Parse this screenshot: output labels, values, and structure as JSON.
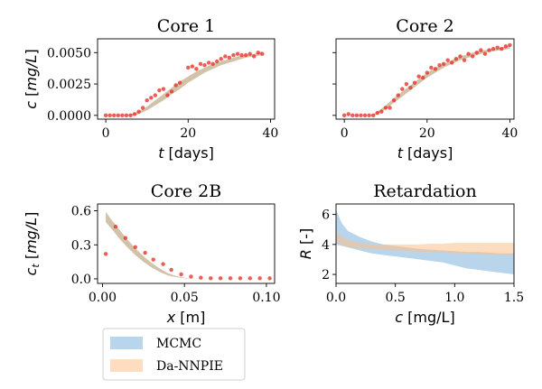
{
  "colors": {
    "mcmc": "#7fb2dc",
    "danppie": "#fdbf8a",
    "points": "#e8332a"
  },
  "legend": {
    "placement": "below-left",
    "items": [
      {
        "key": "mcmc",
        "label": "MCMC"
      },
      {
        "key": "danppie",
        "label": "Da-NNPIE"
      }
    ]
  },
  "chart_data": [
    {
      "id": "core1",
      "type": "scatter",
      "title": "Core 1",
      "xlabel_var": "t",
      "xlabel_unit": "[days]",
      "ylabel_var": "c",
      "ylabel_unit": "[mg/L]",
      "xlim": [
        -2,
        41
      ],
      "ylim": [
        -0.0003,
        0.0061
      ],
      "xticks": [
        0,
        20,
        40
      ],
      "xtick_labels": [
        "0",
        "20",
        "40"
      ],
      "yticks": [
        0,
        0.0025,
        0.005
      ],
      "ytick_labels": [
        "0.0000",
        "0.0025",
        "0.0050"
      ],
      "band": {
        "series": "both",
        "x": [
          0,
          5,
          6,
          8,
          10,
          12,
          14,
          16,
          18,
          20,
          22,
          24,
          26,
          28,
          30,
          32,
          34,
          36,
          38
        ],
        "lower": [
          0,
          0,
          0,
          0.0001,
          0.0004,
          0.0008,
          0.0012,
          0.0017,
          0.0021,
          0.0026,
          0.003,
          0.0034,
          0.0037,
          0.004,
          0.0042,
          0.0044,
          0.0046,
          0.0047,
          0.0048
        ],
        "upper": [
          0,
          0,
          0.0001,
          0.0003,
          0.0007,
          0.0012,
          0.0017,
          0.0022,
          0.0027,
          0.0031,
          0.0035,
          0.0038,
          0.0041,
          0.0043,
          0.0045,
          0.0047,
          0.0048,
          0.0049,
          0.0051
        ]
      },
      "points": {
        "x": [
          0,
          1,
          2,
          3,
          4,
          5,
          6,
          7,
          8,
          9,
          10,
          11,
          12,
          13,
          14,
          15,
          16,
          17,
          18,
          20,
          21,
          22,
          23,
          24,
          25,
          26,
          27,
          28,
          29,
          30,
          31,
          32,
          33,
          34,
          35,
          36,
          37,
          38
        ],
        "y": [
          0,
          0,
          0,
          0,
          0,
          0,
          0,
          0.0001,
          0.0003,
          0.0006,
          0.0012,
          0.0014,
          0.0016,
          0.002,
          0.0021,
          0.0016,
          0.0019,
          0.0024,
          0.0026,
          0.0038,
          0.0039,
          0.0037,
          0.0041,
          0.004,
          0.0042,
          0.0041,
          0.0043,
          0.0045,
          0.0047,
          0.0046,
          0.0048,
          0.0049,
          0.0048,
          0.0048,
          0.0049,
          0.0047,
          0.005,
          0.0049
        ]
      }
    },
    {
      "id": "core2",
      "type": "scatter",
      "title": "Core 2",
      "xlabel_var": "t",
      "xlabel_unit": "[days]",
      "xlim": [
        -2,
        41
      ],
      "ylim": [
        -0.0003,
        0.0061
      ],
      "xticks": [
        0,
        20,
        40
      ],
      "xtick_labels": [
        "0",
        "20",
        "40"
      ],
      "yticks": [
        0,
        0.0025,
        0.005
      ],
      "ytick_labels": [],
      "band": {
        "series": "both",
        "x": [
          0,
          6,
          7,
          8,
          10,
          12,
          14,
          16,
          18,
          20,
          22,
          24,
          26,
          28,
          30,
          32,
          34,
          36,
          38,
          40
        ],
        "lower": [
          0,
          0,
          0,
          0.0001,
          0.0005,
          0.001,
          0.0015,
          0.002,
          0.0025,
          0.003,
          0.0034,
          0.0038,
          0.0041,
          0.0044,
          0.0046,
          0.0048,
          0.005,
          0.0051,
          0.0052,
          0.0053
        ],
        "upper": [
          0,
          0,
          0.0001,
          0.0003,
          0.0008,
          0.0014,
          0.0019,
          0.0024,
          0.0029,
          0.0034,
          0.0038,
          0.0041,
          0.0044,
          0.0047,
          0.0049,
          0.0051,
          0.0052,
          0.0053,
          0.0054,
          0.0056
        ]
      },
      "points": {
        "x": [
          0,
          1,
          2,
          3,
          4,
          5,
          6,
          7,
          8,
          9,
          10,
          11,
          12,
          13,
          14,
          15,
          16,
          17,
          18,
          19,
          20,
          21,
          22,
          23,
          24,
          25,
          26,
          27,
          28,
          29,
          30,
          31,
          32,
          33,
          34,
          35,
          36,
          37,
          38,
          39,
          40
        ],
        "y": [
          0,
          0.0001,
          0,
          0,
          0,
          0,
          0,
          0,
          0.0002,
          0.0003,
          0.0006,
          0.0006,
          0.0012,
          0.0016,
          0.0021,
          0.0025,
          0.0022,
          0.0026,
          0.0031,
          0.003,
          0.0034,
          0.0038,
          0.0037,
          0.004,
          0.0041,
          0.0044,
          0.0042,
          0.0045,
          0.0047,
          0.0044,
          0.0049,
          0.0047,
          0.005,
          0.0052,
          0.0049,
          0.0052,
          0.0053,
          0.0054,
          0.0053,
          0.0055,
          0.0056
        ]
      }
    },
    {
      "id": "core2b",
      "type": "scatter",
      "title": "Core 2B",
      "xlabel_var": "x",
      "xlabel_unit": "[m]",
      "ylabel_var": "c_t",
      "ylabel_unit": "[mg/L]",
      "xlim": [
        -0.003,
        0.105
      ],
      "ylim": [
        -0.04,
        0.66
      ],
      "xticks": [
        0,
        0.05,
        0.1
      ],
      "xtick_labels": [
        "0.00",
        "0.05",
        "0.10"
      ],
      "yticks": [
        0,
        0.3,
        0.6
      ],
      "ytick_labels": [
        "0.0",
        "0.3",
        "0.6"
      ],
      "band": {
        "series": "both",
        "x": [
          0.002,
          0.005,
          0.01,
          0.015,
          0.02,
          0.025,
          0.03,
          0.035,
          0.04,
          0.045,
          0.05,
          0.055,
          0.06
        ],
        "lower": [
          0.5,
          0.45,
          0.36,
          0.28,
          0.21,
          0.15,
          0.1,
          0.06,
          0.03,
          0.015,
          0.005,
          0.001,
          0
        ],
        "upper": [
          0.59,
          0.53,
          0.44,
          0.35,
          0.27,
          0.2,
          0.14,
          0.09,
          0.05,
          0.025,
          0.01,
          0.003,
          0
        ]
      },
      "points": {
        "x": [
          0.002,
          0.008,
          0.014,
          0.02,
          0.026,
          0.031,
          0.037,
          0.042,
          0.048,
          0.054,
          0.06,
          0.066,
          0.072,
          0.078,
          0.084,
          0.09,
          0.096,
          0.102
        ],
        "y": [
          0.22,
          0.46,
          0.36,
          0.28,
          0.23,
          0.17,
          0.13,
          0.08,
          0.04,
          0.02,
          0.01,
          0.005,
          0.005,
          0.005,
          0.005,
          0.005,
          0.005,
          0.005
        ]
      }
    },
    {
      "id": "retardation",
      "type": "area",
      "title": "Retardation",
      "xlabel_var": "c",
      "xlabel_unit": "[mg/L]",
      "ylabel_var": "R",
      "ylabel_unit": "[-]",
      "xlim": [
        0,
        1.5
      ],
      "ylim": [
        1.4,
        6.7
      ],
      "xticks": [
        0,
        0.5,
        1,
        1.5
      ],
      "xtick_labels": [
        "0.0",
        "0.5",
        "1.0",
        "1.5"
      ],
      "yticks": [
        2,
        4,
        6
      ],
      "ytick_labels": [
        "2",
        "4",
        "6"
      ],
      "series": [
        {
          "key": "mcmc",
          "x": [
            0,
            0.05,
            0.1,
            0.2,
            0.3,
            0.4,
            0.5,
            0.6,
            0.7,
            0.8,
            0.9,
            1.0,
            1.1,
            1.2,
            1.3,
            1.4,
            1.5
          ],
          "lower": [
            4.0,
            3.9,
            3.8,
            3.6,
            3.4,
            3.3,
            3.2,
            3.1,
            3.0,
            2.9,
            2.8,
            2.6,
            2.4,
            2.3,
            2.2,
            2.1,
            2.0
          ],
          "upper": [
            6.3,
            5.4,
            4.9,
            4.5,
            4.2,
            4.0,
            3.9,
            3.8,
            3.7,
            3.65,
            3.6,
            3.55,
            3.5,
            3.5,
            3.45,
            3.4,
            3.4
          ]
        },
        {
          "key": "danppie",
          "x": [
            0,
            0.05,
            0.1,
            0.2,
            0.3,
            0.4,
            0.5,
            0.6,
            0.7,
            0.8,
            0.9,
            1.0,
            1.1,
            1.2,
            1.3,
            1.4,
            1.5
          ],
          "lower": [
            4.2,
            3.95,
            3.85,
            3.75,
            3.7,
            3.65,
            3.6,
            3.55,
            3.5,
            3.5,
            3.45,
            3.4,
            3.4,
            3.35,
            3.3,
            3.3,
            3.3
          ],
          "upper": [
            4.9,
            4.5,
            4.3,
            4.1,
            4.0,
            4.0,
            4.0,
            4.0,
            4.0,
            4.05,
            4.05,
            4.1,
            4.1,
            4.1,
            4.1,
            4.1,
            4.1
          ]
        }
      ]
    }
  ]
}
